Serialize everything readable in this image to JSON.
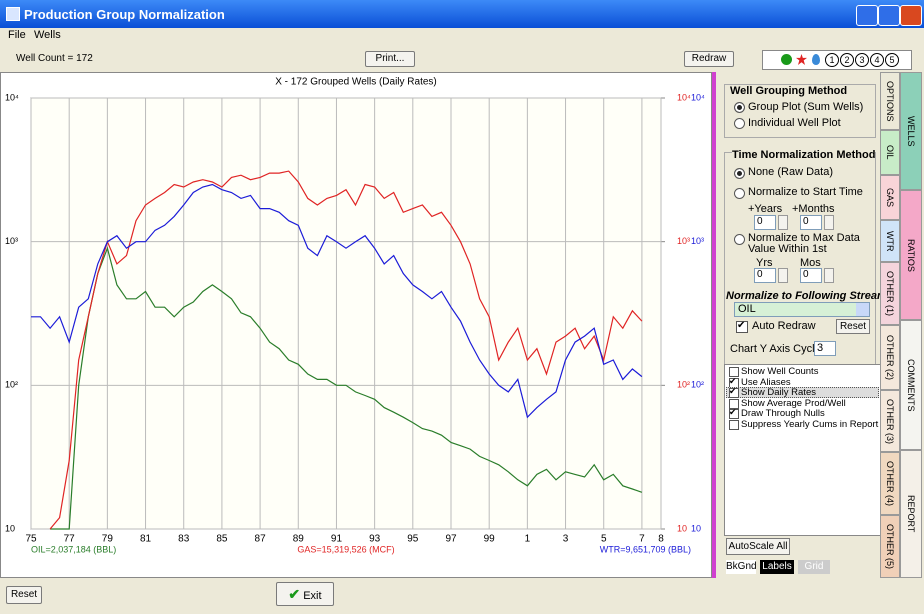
{
  "window": {
    "title": "Production Group Normalization"
  },
  "menu": [
    "File",
    "Wells"
  ],
  "toolbar": {
    "well_count": "Well Count = 172",
    "print": "Print...",
    "redraw": "Redraw",
    "stream_buttons": [
      "1",
      "2",
      "3",
      "4",
      "5"
    ]
  },
  "chart_data": {
    "type": "line",
    "title": "X - 172 Grouped Wells (Daily Rates)",
    "x": [
      1975,
      1975.5,
      1976,
      1976.5,
      1977,
      1977.5,
      1978,
      1978.5,
      1979,
      1979.5,
      1980,
      1980.5,
      1981,
      1981.5,
      1982,
      1982.5,
      1983,
      1983.5,
      1984,
      1984.5,
      1985,
      1985.5,
      1986,
      1986.5,
      1987,
      1987.5,
      1988,
      1988.5,
      1989,
      1989.5,
      1990,
      1990.5,
      1991,
      1991.5,
      1992,
      1992.5,
      1993,
      1993.5,
      1994,
      1994.5,
      1995,
      1995.5,
      1996,
      1996.5,
      1997,
      1997.5,
      1998,
      1998.5,
      1999,
      1999.5,
      2000,
      2000.5,
      2001,
      2001.5,
      2002,
      2002.5,
      2003,
      2003.5,
      2004,
      2004.5,
      2005,
      2005.5,
      2006,
      2006.5,
      2007
    ],
    "series": [
      {
        "name": "OIL=2,037,184 (BBL)",
        "color": "#2a7d2a",
        "values": [
          null,
          null,
          10,
          10,
          10,
          100,
          300,
          600,
          900,
          500,
          400,
          400,
          450,
          350,
          350,
          300,
          350,
          380,
          450,
          500,
          450,
          400,
          320,
          300,
          250,
          200,
          180,
          150,
          140,
          120,
          110,
          110,
          100,
          100,
          90,
          85,
          80,
          70,
          65,
          60,
          55,
          50,
          48,
          45,
          40,
          38,
          36,
          32,
          30,
          28,
          25,
          22,
          20,
          24,
          26,
          22,
          25,
          24,
          23,
          28,
          22,
          24,
          20,
          19,
          18
        ]
      },
      {
        "name": "GAS=15,319,526 (MCF)",
        "color": "#e02424",
        "values": [
          null,
          null,
          10,
          12,
          30,
          150,
          300,
          600,
          1000,
          700,
          800,
          1400,
          1800,
          2000,
          2200,
          2500,
          2400,
          2600,
          2700,
          2600,
          2400,
          2800,
          2900,
          2700,
          2800,
          3000,
          3000,
          3100,
          2600,
          2000,
          1800,
          2000,
          2100,
          2300,
          1800,
          2500,
          2400,
          2000,
          2200,
          1600,
          1700,
          1800,
          1500,
          1600,
          1300,
          1000,
          700,
          400,
          300,
          150,
          200,
          250,
          150,
          180,
          120,
          200,
          220,
          250,
          180,
          220,
          150,
          300,
          250,
          330,
          280
        ]
      },
      {
        "name": "WTR=9,651,709 (BBL)",
        "color": "#1c1cd8",
        "values": [
          300,
          300,
          250,
          300,
          200,
          350,
          400,
          700,
          1000,
          1100,
          900,
          1000,
          1000,
          1200,
          1300,
          1500,
          1800,
          2200,
          2400,
          2500,
          2300,
          2200,
          2000,
          2100,
          1700,
          1700,
          1600,
          1400,
          1300,
          900,
          800,
          1100,
          1000,
          900,
          1000,
          1100,
          900,
          700,
          800,
          600,
          500,
          450,
          400,
          450,
          350,
          280,
          200,
          150,
          120,
          100,
          90,
          110,
          60,
          70,
          80,
          90,
          150,
          200,
          220,
          250,
          140,
          150,
          110,
          130,
          115
        ]
      }
    ],
    "xlim": [
      1975,
      2008
    ],
    "xticks": [
      {
        "value": 1975,
        "label": "75"
      },
      {
        "value": 1977,
        "label": "77"
      },
      {
        "value": 1979,
        "label": "79"
      },
      {
        "value": 1981,
        "label": "81"
      },
      {
        "value": 1983,
        "label": "83"
      },
      {
        "value": 1985,
        "label": "85"
      },
      {
        "value": 1987,
        "label": "87"
      },
      {
        "value": 1989,
        "label": "89"
      },
      {
        "value": 1991,
        "label": "91"
      },
      {
        "value": 1993,
        "label": "93"
      },
      {
        "value": 1995,
        "label": "95"
      },
      {
        "value": 1997,
        "label": "97"
      },
      {
        "value": 1999,
        "label": "99"
      },
      {
        "value": 2001,
        "label": "1"
      },
      {
        "value": 2003,
        "label": "3"
      },
      {
        "value": 2005,
        "label": "5"
      },
      {
        "value": 2007,
        "label": "7"
      },
      {
        "value": 2008,
        "label": "8"
      }
    ],
    "ylim": [
      10,
      10000
    ],
    "yticks": [
      10,
      {
        "value": 100,
        "label": "10²"
      },
      {
        "value": 1000,
        "label": "10³"
      },
      {
        "value": 10000,
        "label": "10⁴"
      }
    ],
    "y2lim": [
      10,
      10000
    ],
    "y2ticks": [
      10,
      {
        "value": 100,
        "label": "10²"
      },
      {
        "value": 1000,
        "label": "10³"
      },
      {
        "value": 10000,
        "label": "10⁴"
      }
    ],
    "log_scale": true,
    "grid": true
  },
  "panel": {
    "grouping": {
      "title": "Well Grouping Method",
      "options": [
        "Group Plot (Sum Wells)",
        "Individual Well Plot"
      ],
      "selected": 0
    },
    "time": {
      "title": "Time Normalization Method",
      "options": [
        "None (Raw Data)",
        "Normalize to Start Time",
        "Normalize to Max Data Value Within 1st"
      ],
      "selected": 0,
      "years_label": "+Years",
      "months_label": "+Months",
      "yrs_label": "Yrs",
      "mos_label": "Mos",
      "spin_values": [
        "0",
        "0",
        "0",
        "0"
      ]
    },
    "stream": {
      "title": "Normalize to Following Stream",
      "value": "OIL",
      "auto_redraw": "Auto Redraw",
      "reset": "Reset"
    },
    "cycles": {
      "label": "Chart Y Axis Cycles",
      "value": "3"
    },
    "checks": [
      {
        "label": "Show Well Counts",
        "checked": false
      },
      {
        "label": "Use Aliases",
        "checked": true
      },
      {
        "label": "Show Daily Rates",
        "checked": true
      },
      {
        "label": "Show Average Prod/Well",
        "checked": false
      },
      {
        "label": "Draw Through Nulls",
        "checked": true
      },
      {
        "label": "Suppress Yearly Cums in Report",
        "checked": false
      }
    ],
    "autoscale": "AutoScale All",
    "bkgnd": "BkGnd",
    "labels": "Labels",
    "grid": "Grid"
  },
  "tabs": {
    "left": [
      "OPTIONS",
      "OIL",
      "GAS",
      "WTR",
      "OTHER (1)",
      "OTHER (2)",
      "OTHER (3)",
      "OTHER (4)",
      "OTHER (5)"
    ],
    "right": [
      "WELLS",
      "RATIOS",
      "COMMENTS",
      "REPORT"
    ]
  },
  "footer": {
    "reset": "Reset",
    "exit": "Exit"
  }
}
